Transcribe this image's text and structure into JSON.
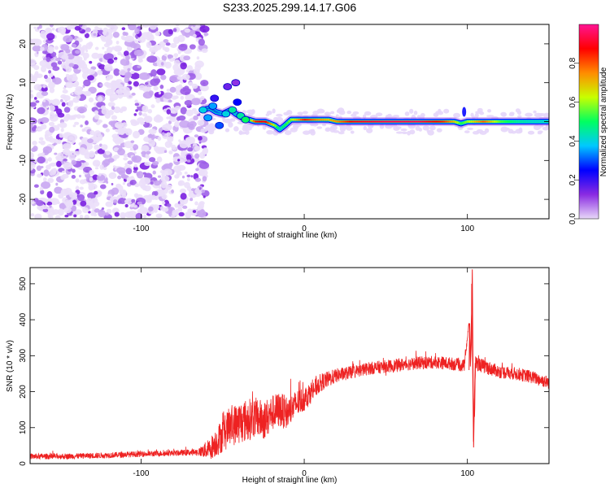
{
  "title": "S233.2025.299.14.17.G06",
  "chart_data": [
    {
      "type": "heatmap",
      "xlabel": "Height of straight line (km)",
      "ylabel": "Frequency (Hz)",
      "xlim": [
        -168,
        150
      ],
      "ylim": [
        -25,
        25
      ],
      "xticks": [
        -100,
        0,
        100
      ],
      "yticks": [
        -20,
        -10,
        0,
        10,
        20
      ],
      "colorbar": {
        "label": "Normalized spectral amplitude",
        "range": [
          0,
          1
        ],
        "ticks": [
          "0.0",
          "0.2",
          "0.4",
          "0.6",
          "0.8"
        ],
        "tick_values": [
          0,
          0.2,
          0.4,
          0.6,
          0.8
        ],
        "colors": [
          "#e8d8f8",
          "#8a2be2",
          "#0000ff",
          "#00c8ff",
          "#00ff60",
          "#c8ff00",
          "#ff8c00",
          "#ff0000",
          "#ff1493"
        ]
      },
      "noise_region_end_km": -62,
      "spectral_line": [
        {
          "x": -62,
          "y": 3.0,
          "a": 0.35
        },
        {
          "x": -58,
          "y": 3.5,
          "a": 0.3
        },
        {
          "x": -54,
          "y": 2.5,
          "a": 0.3
        },
        {
          "x": -50,
          "y": 2.0,
          "a": 0.35
        },
        {
          "x": -45,
          "y": 3.0,
          "a": 0.4
        },
        {
          "x": -42,
          "y": 2.0,
          "a": 0.35
        },
        {
          "x": -38,
          "y": 1.0,
          "a": 0.4
        },
        {
          "x": -34,
          "y": 0.5,
          "a": 0.5
        },
        {
          "x": -30,
          "y": 0.0,
          "a": 0.85
        },
        {
          "x": -24,
          "y": 0.0,
          "a": 0.9
        },
        {
          "x": -18,
          "y": -1.0,
          "a": 0.6
        },
        {
          "x": -15,
          "y": -2.0,
          "a": 0.4
        },
        {
          "x": -12,
          "y": -1.0,
          "a": 0.5
        },
        {
          "x": -8,
          "y": 0.5,
          "a": 0.6
        },
        {
          "x": 0,
          "y": 0.5,
          "a": 0.85
        },
        {
          "x": 8,
          "y": 0.5,
          "a": 0.75
        },
        {
          "x": 15,
          "y": 0.5,
          "a": 0.7
        },
        {
          "x": 20,
          "y": 0.0,
          "a": 0.75
        },
        {
          "x": 30,
          "y": 0.0,
          "a": 0.9
        },
        {
          "x": 50,
          "y": 0.0,
          "a": 0.95
        },
        {
          "x": 70,
          "y": 0.0,
          "a": 0.95
        },
        {
          "x": 85,
          "y": 0.0,
          "a": 0.85
        },
        {
          "x": 92,
          "y": 0.0,
          "a": 0.7
        },
        {
          "x": 96,
          "y": -0.5,
          "a": 0.5
        },
        {
          "x": 100,
          "y": 0.0,
          "a": 0.6
        },
        {
          "x": 110,
          "y": 0.0,
          "a": 0.8
        },
        {
          "x": 120,
          "y": 0.0,
          "a": 0.55
        },
        {
          "x": 130,
          "y": 0.0,
          "a": 0.45
        },
        {
          "x": 140,
          "y": 0.0,
          "a": 0.4
        },
        {
          "x": 150,
          "y": 0.0,
          "a": 0.4
        }
      ]
    },
    {
      "type": "line",
      "xlabel": "Height of straight line (km)",
      "ylabel": "SNR (10 * v/v)",
      "xlim": [
        -168,
        150
      ],
      "ylim": [
        0,
        545
      ],
      "xticks": [
        -100,
        0,
        100
      ],
      "yticks": [
        0,
        100,
        200,
        300,
        400,
        500
      ],
      "series": [
        {
          "name": "SNR",
          "color": "#ee2222",
          "x": [
            -168,
            -150,
            -130,
            -110,
            -90,
            -75,
            -65,
            -58,
            -52,
            -46,
            -40,
            -35,
            -30,
            -25,
            -20,
            -15,
            -10,
            -5,
            0,
            10,
            20,
            30,
            40,
            50,
            60,
            70,
            80,
            90,
            98,
            101,
            102,
            103,
            104,
            105,
            110,
            120,
            130,
            140,
            150
          ],
          "y": [
            20,
            20,
            22,
            25,
            28,
            30,
            32,
            40,
            70,
            100,
            115,
            120,
            130,
            120,
            140,
            150,
            140,
            165,
            180,
            225,
            245,
            255,
            265,
            270,
            275,
            280,
            282,
            278,
            272,
            390,
            300,
            540,
            45,
            280,
            270,
            255,
            250,
            240,
            225
          ],
          "noise_amplitude": [
            8,
            8,
            8,
            8,
            8,
            8,
            10,
            30,
            45,
            55,
            60,
            60,
            55,
            55,
            50,
            50,
            45,
            40,
            35,
            25,
            20,
            18,
            18,
            18,
            18,
            18,
            18,
            18,
            18,
            10,
            10,
            5,
            5,
            20,
            20,
            18,
            18,
            18,
            18
          ]
        }
      ]
    }
  ]
}
